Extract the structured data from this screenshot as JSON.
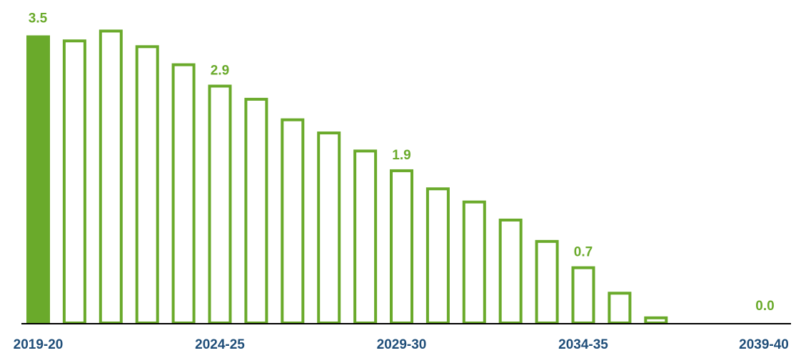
{
  "colors": {
    "bar": "#6aaa2b",
    "axis": "#000000",
    "tick_label": "#1f4e79"
  },
  "chart_data": {
    "type": "bar",
    "title": "",
    "xlabel": "",
    "ylabel": "",
    "ylim": [
      0,
      3.6
    ],
    "grid": false,
    "legend": "none",
    "categories": [
      "2019-20",
      "2020-21",
      "2021-22",
      "2022-23",
      "2023-24",
      "2024-25",
      "2025-26",
      "2026-27",
      "2027-28",
      "2028-29",
      "2029-30",
      "2030-31",
      "2031-32",
      "2032-33",
      "2033-34",
      "2034-35",
      "2035-36",
      "2036-37",
      "2037-38",
      "2038-39",
      "2039-40"
    ],
    "values": [
      3.5,
      3.45,
      3.57,
      3.38,
      3.16,
      2.9,
      2.74,
      2.49,
      2.33,
      2.11,
      1.87,
      1.65,
      1.49,
      1.27,
      1.01,
      0.69,
      0.38,
      0.08,
      0.0,
      0.0,
      0.0
    ],
    "filled_categories": [
      "2019-20"
    ],
    "data_labels": [
      {
        "category": "2019-20",
        "text": "3.5"
      },
      {
        "category": "2024-25",
        "text": "2.9"
      },
      {
        "category": "2029-30",
        "text": "1.9"
      },
      {
        "category": "2034-35",
        "text": "0.7"
      },
      {
        "category": "2039-40",
        "text": "0.0"
      }
    ],
    "tick_labels": [
      "2019-20",
      "2024-25",
      "2029-30",
      "2034-35",
      "2039-40"
    ]
  }
}
